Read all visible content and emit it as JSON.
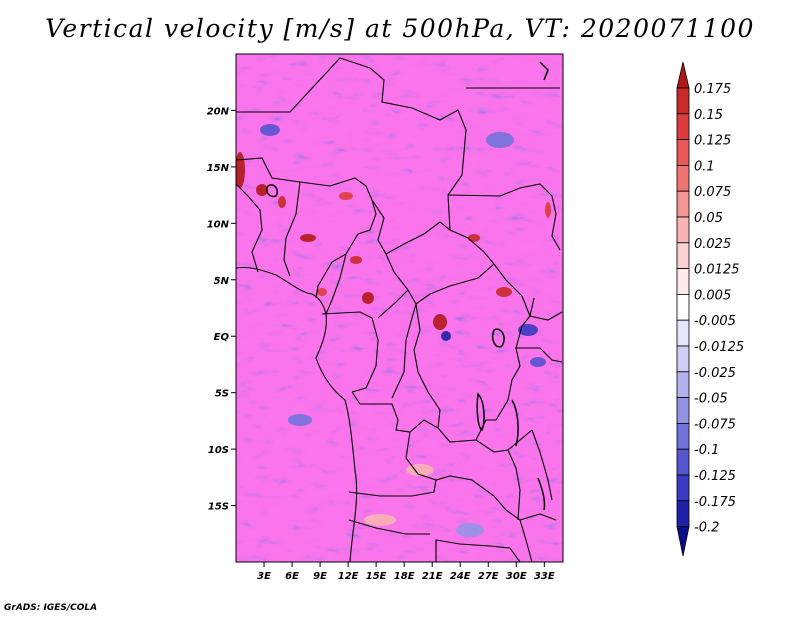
{
  "title": "Vertical velocity [m/s] at 500hPa, VT: 2020071100",
  "credit": "GrADS: IGES/COLA",
  "map": {
    "lon_range": [
      0,
      35
    ],
    "lat_range": [
      -20,
      25
    ],
    "lat_labels": [
      "20N",
      "15N",
      "10N",
      "5N",
      "EQ",
      "5S",
      "10S",
      "15S"
    ],
    "lat_values": [
      20,
      15,
      10,
      5,
      0,
      -5,
      -10,
      -15
    ],
    "lon_labels": [
      "3E",
      "6E",
      "9E",
      "12E",
      "15E",
      "18E",
      "21E",
      "24E",
      "27E",
      "30E",
      "33E"
    ],
    "lon_values": [
      3,
      6,
      9,
      12,
      15,
      18,
      21,
      24,
      27,
      30,
      33
    ]
  },
  "colorbar": {
    "levels": [
      "0.175",
      "0.15",
      "0.125",
      "0.1",
      "0.075",
      "0.05",
      "0.025",
      "0.0125",
      "0.005",
      "-0.005",
      "-0.0125",
      "-0.025",
      "-0.05",
      "-0.075",
      "-0.1",
      "-0.125",
      "-0.175",
      "-0.2"
    ],
    "colors": [
      "#b01818",
      "#c82a2a",
      "#dc3c3c",
      "#e85858",
      "#ef7474",
      "#f49494",
      "#f8b4b4",
      "#fbd2d2",
      "#fdeaea",
      "#ffffff",
      "#e6e6fb",
      "#cfcff6",
      "#b2b2ef",
      "#9393e6",
      "#7373dc",
      "#5555d0",
      "#3a3ac2",
      "#2020a8",
      "#0c0c8c"
    ]
  }
}
